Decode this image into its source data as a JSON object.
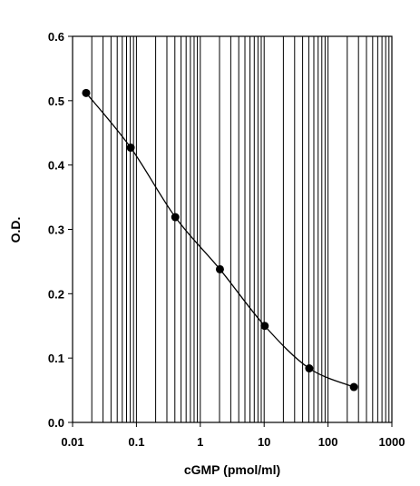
{
  "chart_data": {
    "type": "scatter",
    "xlabel": "cGMP  (pmol/ml)",
    "ylabel": "O.D.",
    "xscale": "log",
    "xlim": [
      0.01,
      1000
    ],
    "ylim": [
      0.0,
      0.6
    ],
    "grid": "vertical minor and major lines on log x-axis",
    "x_ticks": [
      "0.01",
      "0.1",
      "1",
      "10",
      "100",
      "1000"
    ],
    "y_ticks": [
      "0.0",
      "0.1",
      "0.2",
      "0.3",
      "0.4",
      "0.5",
      "0.6"
    ],
    "series": [
      {
        "marker": "filled-circle",
        "line": "smooth-curve",
        "points": [
          {
            "x": 0.0163,
            "y": 0.512
          },
          {
            "x": 0.0813,
            "y": 0.427
          },
          {
            "x": 0.406,
            "y": 0.319
          },
          {
            "x": 2.03,
            "y": 0.238
          },
          {
            "x": 10.2,
            "y": 0.15
          },
          {
            "x": 50.8,
            "y": 0.084
          },
          {
            "x": 254,
            "y": 0.055
          }
        ]
      }
    ],
    "colors": {
      "line": "#000000",
      "marker": "#000000",
      "grid": "#000000"
    }
  }
}
